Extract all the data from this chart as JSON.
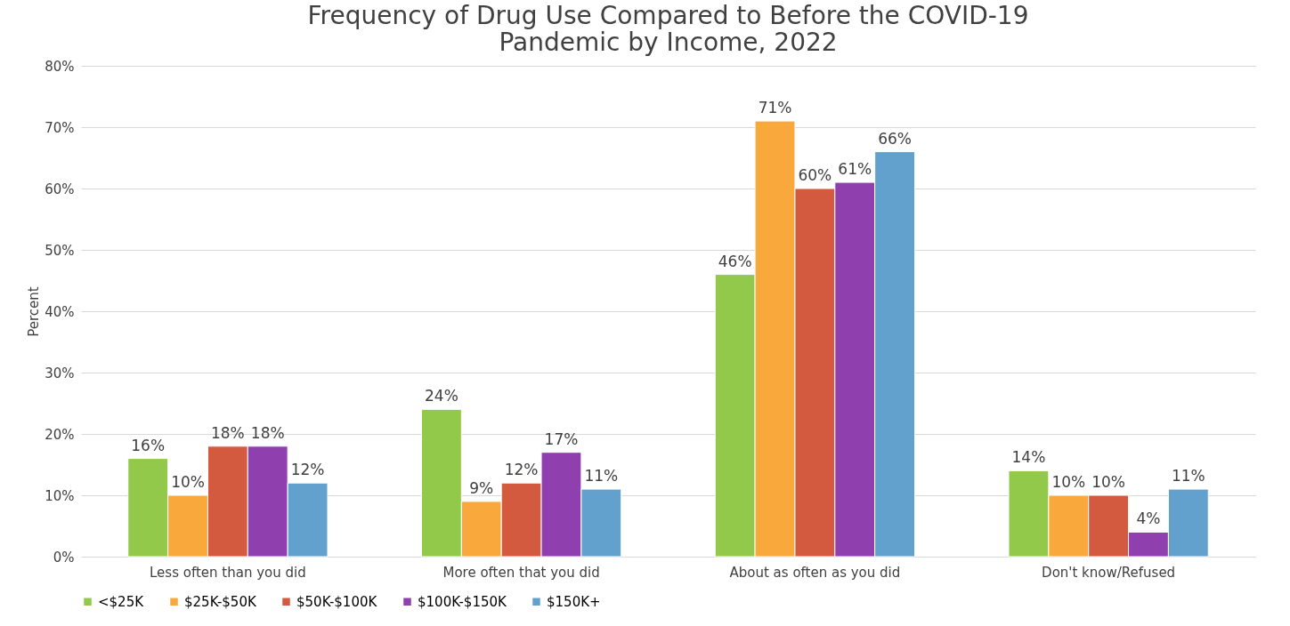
{
  "chart_data": {
    "type": "bar",
    "title": "Frequency of Drug Use Compared to Before the COVID-19 Pandemic by Income, 2022",
    "ylabel": "Percent",
    "categories": [
      "Less often than you did",
      "More often that you did",
      "About as often as you did",
      "Don't know/Refused"
    ],
    "series": [
      {
        "name": "<$25K",
        "color": "#92c94b",
        "values": [
          16,
          24,
          46,
          14
        ],
        "value_labels": [
          "16%",
          "24%",
          "46%",
          "14%"
        ]
      },
      {
        "name": "$25K-$50K",
        "color": "#f9a83b",
        "values": [
          10,
          9,
          71,
          10
        ],
        "value_labels": [
          "10%",
          "9%",
          "71%",
          "10%"
        ]
      },
      {
        "name": "$50K-$100K",
        "color": "#d35a3e",
        "values": [
          18,
          12,
          60,
          10
        ],
        "value_labels": [
          "18%",
          "12%",
          "60%",
          "10%"
        ]
      },
      {
        "name": "$100K-$150K",
        "color": "#8f3fae",
        "values": [
          18,
          17,
          61,
          4
        ],
        "value_labels": [
          "18%",
          "17%",
          "61%",
          "4%"
        ]
      },
      {
        "name": "$150K+",
        "color": "#62a1cd",
        "values": [
          12,
          11,
          66,
          11
        ],
        "value_labels": [
          "12%",
          "11%",
          "66%",
          "11%"
        ]
      }
    ],
    "ylim": [
      0,
      80
    ],
    "yticks": [
      {
        "value": 0,
        "label": "0%"
      },
      {
        "value": 10,
        "label": "10%"
      },
      {
        "value": 20,
        "label": "20%"
      },
      {
        "value": 30,
        "label": "30%"
      },
      {
        "value": 40,
        "label": "40%"
      },
      {
        "value": 50,
        "label": "50%"
      },
      {
        "value": 60,
        "label": "60%"
      },
      {
        "value": 70,
        "label": "70%"
      },
      {
        "value": 80,
        "label": "80%"
      }
    ],
    "grid": "y",
    "legend": "bottom"
  }
}
